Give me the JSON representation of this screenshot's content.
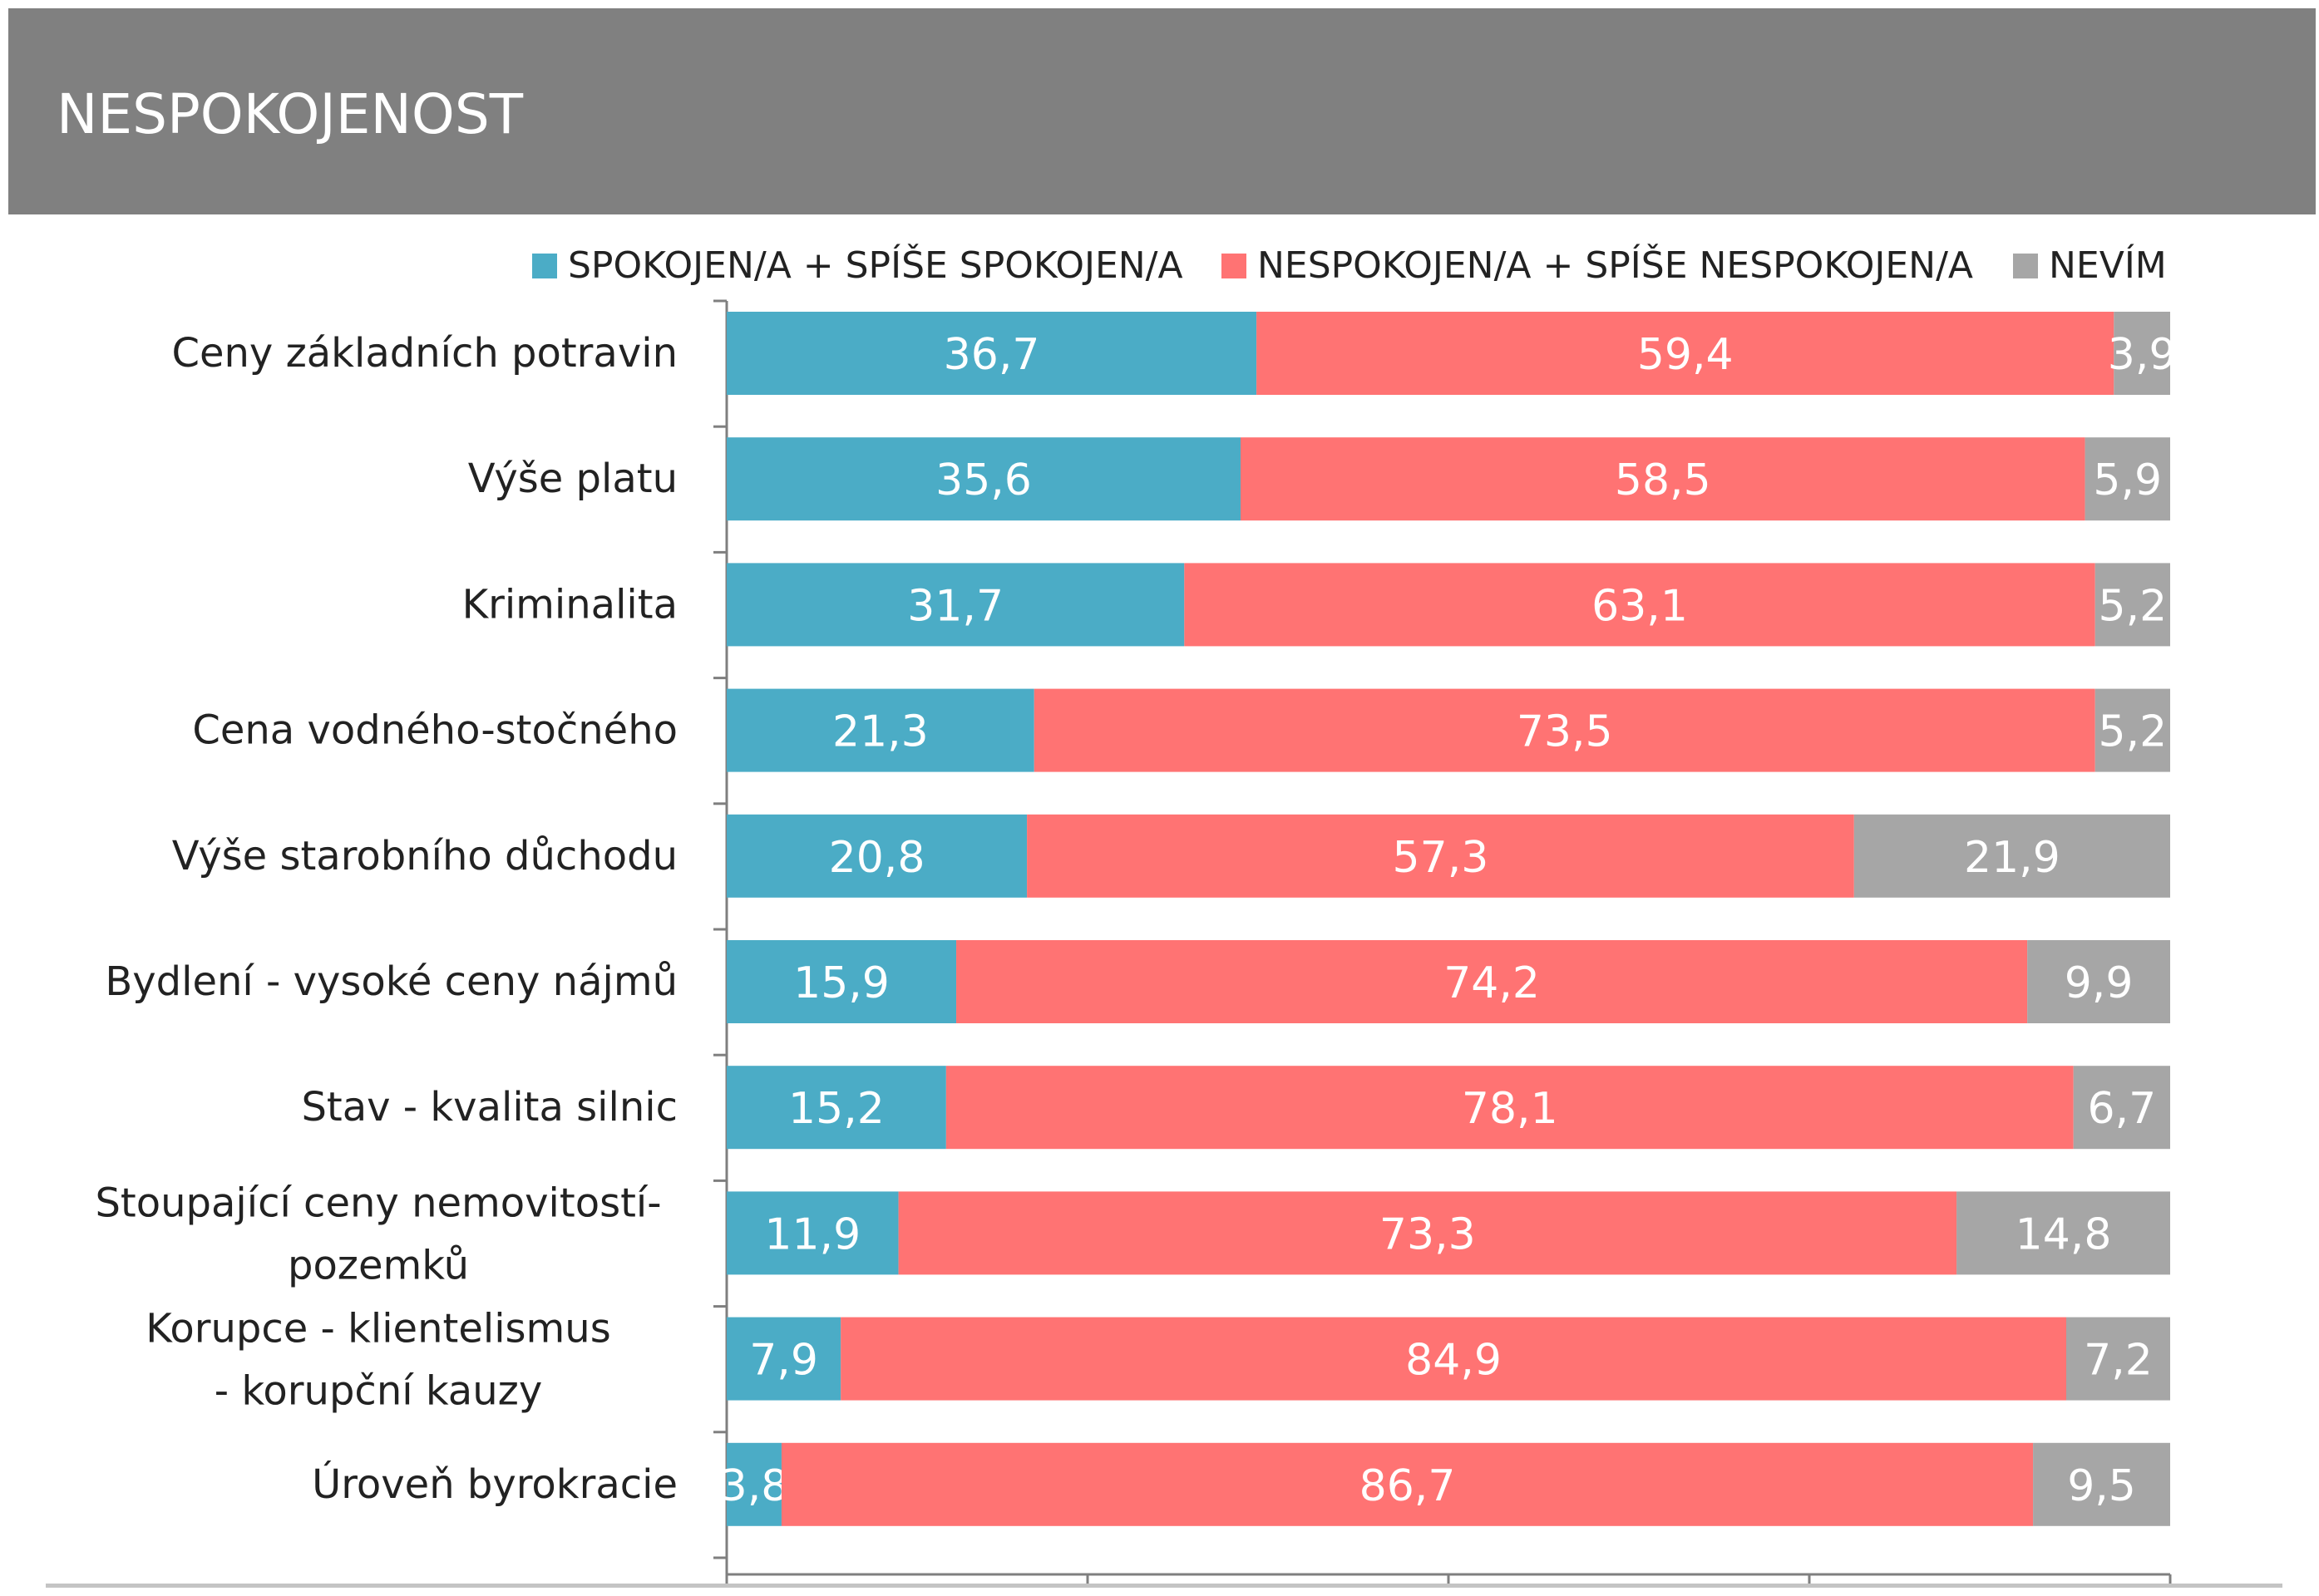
{
  "page": {
    "title": "NESPOKOJENOST"
  },
  "colors": {
    "header_background": "#808080",
    "satisfied": "#4BACC6",
    "dissatisfied": "#FF7373",
    "dont_know": "#A6A6A6"
  },
  "chart_data": {
    "type": "bar",
    "orientation": "horizontal",
    "stacked": true,
    "percent_stacked": true,
    "title": "NESPOKOJENOST",
    "legend_position": "top-right",
    "grid": false,
    "xlim": [
      0,
      100
    ],
    "categories": [
      "Ceny základních potravin",
      "Výše platu",
      "Kriminalita",
      "Cena vodného-stočného",
      "Výše starobního důchodu",
      "Bydlení - vysoké ceny nájmů",
      "Stav - kvalita silnic",
      "Stoupající ceny nemovitostí-pozemků",
      "Korupce - klientelismus - korupční kauzy",
      "Úroveň byrokracie"
    ],
    "series": [
      {
        "name": "SPOKOJEN/A + SPÍŠE SPOKOJEN/A",
        "color": "#4BACC6",
        "values": [
          36.7,
          35.6,
          31.7,
          21.3,
          20.8,
          15.9,
          15.2,
          11.9,
          7.9,
          3.8
        ],
        "labels": [
          "36,7",
          "35,6",
          "31,7",
          "21,3",
          "20,8",
          "15,9",
          "15,2",
          "11,9",
          "7,9",
          "3,8"
        ]
      },
      {
        "name": "NESPOKOJEN/A + SPÍŠE NESPOKOJEN/A",
        "color": "#FF7373",
        "values": [
          59.4,
          58.5,
          63.1,
          73.5,
          57.3,
          74.2,
          78.1,
          73.3,
          84.9,
          86.7
        ],
        "labels": [
          "59,4",
          "58,5",
          "63,1",
          "73,5",
          "57,3",
          "74,2",
          "78,1",
          "73,3",
          "84,9",
          "86,7"
        ]
      },
      {
        "name": "NEVÍM",
        "color": "#A6A6A6",
        "values": [
          3.9,
          5.9,
          5.2,
          5.2,
          21.9,
          9.9,
          6.7,
          14.8,
          7.2,
          9.5
        ],
        "labels": [
          "3,9",
          "5,9",
          "5,2",
          "5,2",
          "21,9",
          "9,9",
          "6,7",
          "14,8",
          "7,2",
          "9,5"
        ]
      }
    ]
  }
}
